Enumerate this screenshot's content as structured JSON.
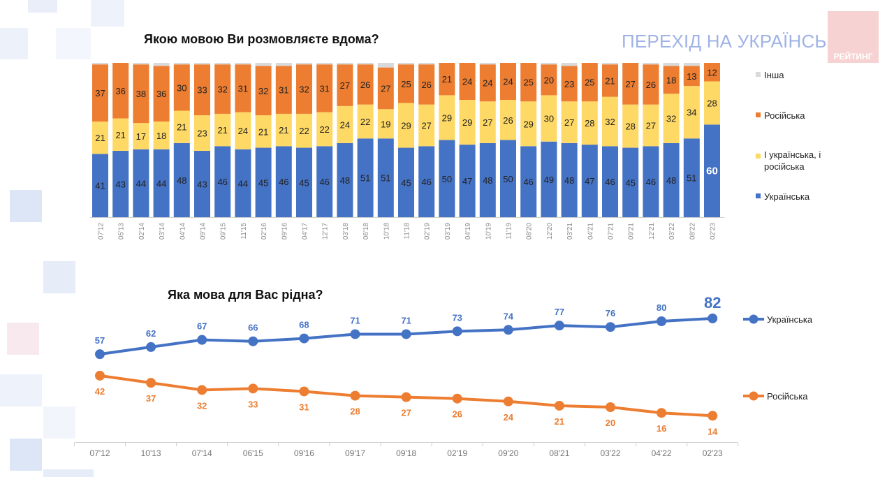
{
  "header": {
    "brand_title": "ПЕРЕХІД НА УКРАЇНСЬКУ",
    "logo_text": "РЕЙТИНГ"
  },
  "colors": {
    "ukrainian": "#4472c4",
    "both": "#ffd966",
    "russian": "#ed7d31",
    "other": "#d9d9d9",
    "deco": "#e4ebf8"
  },
  "chart_data": [
    {
      "type": "bar",
      "stacked": true,
      "title": "Якою мовою Ви розмовляєте вдома?",
      "ylim": [
        0,
        100
      ],
      "legend_position": "right",
      "categories": [
        "07'12",
        "05'13",
        "02'14",
        "03'14",
        "04'14",
        "09'14",
        "09'15",
        "11'15",
        "02'16",
        "09'16",
        "04'17",
        "12'17",
        "03'18",
        "06'18",
        "10'18",
        "11'18",
        "02'19",
        "03'19",
        "04'19",
        "10'19",
        "11'19",
        "08'20",
        "12'20",
        "03'21",
        "04'21",
        "07'21",
        "09'21",
        "12'21",
        "03'22",
        "08'22",
        "02'23"
      ],
      "series": [
        {
          "name": "Українська",
          "values": [
            41,
            43,
            44,
            44,
            48,
            43,
            46,
            44,
            45,
            46,
            45,
            46,
            48,
            51,
            51,
            45,
            46,
            50,
            47,
            48,
            50,
            46,
            49,
            48,
            47,
            46,
            45,
            46,
            48,
            51,
            60
          ]
        },
        {
          "name": "І українська, і російська",
          "values": [
            21,
            21,
            17,
            18,
            21,
            23,
            21,
            24,
            21,
            21,
            22,
            22,
            24,
            22,
            19,
            29,
            27,
            29,
            29,
            27,
            26,
            29,
            30,
            27,
            28,
            32,
            28,
            27,
            32,
            34,
            28
          ]
        },
        {
          "name": "Російська",
          "values": [
            37,
            36,
            38,
            36,
            30,
            33,
            32,
            31,
            32,
            31,
            32,
            31,
            27,
            26,
            27,
            25,
            26,
            21,
            24,
            24,
            24,
            25,
            20,
            23,
            25,
            21,
            27,
            26,
            18,
            13,
            12
          ]
        },
        {
          "name": "Інша",
          "values": [
            1,
            0,
            1,
            2,
            1,
            1,
            1,
            1,
            2,
            2,
            1,
            1,
            1,
            1,
            3,
            1,
            1,
            0,
            0,
            1,
            0,
            0,
            1,
            2,
            0,
            1,
            0,
            1,
            2,
            2,
            0
          ]
        }
      ],
      "legend": [
        "Інша",
        "Російська",
        "І українська, і російська",
        "Українська"
      ]
    },
    {
      "type": "line",
      "title": "Яка мова для Вас рідна?",
      "legend_position": "right",
      "categories": [
        "07'12",
        "10'13",
        "07'14",
        "06'15",
        "09'16",
        "09'17",
        "09'18",
        "02'19",
        "09'20",
        "08'21",
        "03'22",
        "04'22",
        "02'23"
      ],
      "series": [
        {
          "name": "Українська",
          "values": [
            57,
            62,
            67,
            66,
            68,
            71,
            71,
            73,
            74,
            77,
            76,
            80,
            82
          ]
        },
        {
          "name": "Російська",
          "values": [
            42,
            37,
            32,
            33,
            31,
            28,
            27,
            26,
            24,
            21,
            20,
            16,
            14
          ]
        }
      ]
    }
  ]
}
